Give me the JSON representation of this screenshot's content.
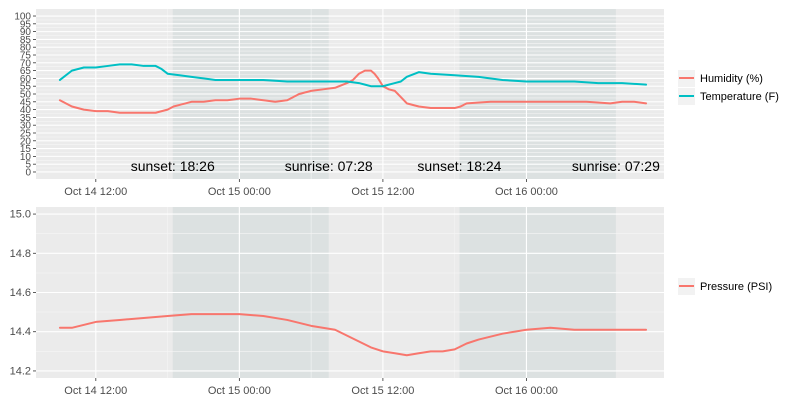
{
  "chart_data": [
    {
      "type": "line",
      "title": "",
      "xlabel": "",
      "ylabel": "",
      "ylim": [
        0,
        100
      ],
      "y_ticks": [
        "0",
        "5",
        "10",
        "15",
        "20",
        "25",
        "30",
        "35",
        "40",
        "45",
        "50",
        "55",
        "60",
        "65",
        "70",
        "75",
        "80",
        "85",
        "90",
        "95",
        "100"
      ],
      "x_ticks": [
        "Oct 14 12:00",
        "Oct 15 00:00",
        "Oct 15 12:00",
        "Oct 16 00:00"
      ],
      "x_tick_hours": [
        12,
        24,
        36,
        48
      ],
      "xlim_hours": [
        7.0,
        59.5
      ],
      "grid": true,
      "legend_position": "right",
      "night_bands_hours": [
        [
          18.43,
          31.47
        ],
        [
          42.4,
          55.48
        ]
      ],
      "annotations": [
        {
          "text": "sunset: 18:26",
          "x": 18.43
        },
        {
          "text": "sunrise: 07:28",
          "x": 31.47
        },
        {
          "text": "sunset: 18:24",
          "x": 42.4
        },
        {
          "text": "sunrise: 07:29",
          "x": 55.48
        }
      ],
      "series": [
        {
          "name": "Humidity (%)",
          "color": "#F8766D",
          "x": [
            9.0,
            10.0,
            11.0,
            12.0,
            13.0,
            14.0,
            15.0,
            16.0,
            17.0,
            18.0,
            18.5,
            19.0,
            20.0,
            21.0,
            22.0,
            23.0,
            24.0,
            25.0,
            26.0,
            27.0,
            28.0,
            29.0,
            30.0,
            31.0,
            32.0,
            33.0,
            33.5,
            34.0,
            34.5,
            35.0,
            35.3,
            35.6,
            36.0,
            36.5,
            37.0,
            37.5,
            38.0,
            39.0,
            40.0,
            41.0,
            42.0,
            42.5,
            43.0,
            45.0,
            47.0,
            49.0,
            50.0,
            51.0,
            53.0,
            55.0,
            56.0,
            57.0,
            58.0
          ],
          "values": [
            46,
            42,
            40,
            39,
            39,
            38,
            38,
            38,
            38,
            40,
            42,
            43,
            45,
            45,
            46,
            46,
            47,
            47,
            46,
            45,
            46,
            50,
            52,
            53,
            54,
            57,
            59,
            63,
            65,
            65,
            63,
            60,
            55,
            53,
            52,
            48,
            44,
            42,
            41,
            41,
            41,
            42,
            44,
            45,
            45,
            45,
            45,
            45,
            45,
            44,
            45,
            45,
            44
          ]
        },
        {
          "name": "Temperature (F)",
          "color": "#00BFC4",
          "x": [
            9.0,
            10.0,
            11.0,
            12.0,
            13.0,
            14.0,
            15.0,
            16.0,
            17.0,
            17.5,
            18.0,
            19.0,
            20.0,
            21.0,
            22.0,
            24.0,
            26.0,
            28.0,
            30.0,
            32.0,
            33.0,
            34.0,
            34.5,
            35.0,
            35.5,
            36.0,
            36.5,
            37.0,
            37.5,
            38.0,
            39.0,
            40.0,
            42.0,
            44.0,
            46.0,
            48.0,
            50.0,
            52.0,
            54.0,
            56.0,
            58.0
          ],
          "values": [
            59,
            65,
            67,
            67,
            68,
            69,
            69,
            68,
            68,
            66,
            63,
            62,
            61,
            60,
            59,
            59,
            59,
            58,
            58,
            58,
            58,
            57,
            56,
            55,
            55,
            55,
            56,
            57,
            58,
            61,
            64,
            63,
            62,
            61,
            59,
            58,
            58,
            58,
            57,
            57,
            56
          ]
        }
      ]
    },
    {
      "type": "line",
      "title": "",
      "xlabel": "",
      "ylabel": "",
      "ylim": [
        14.2,
        15.0
      ],
      "y_ticks": [
        "14.2",
        "14.4",
        "14.6",
        "14.8",
        "15.0"
      ],
      "y_tick_values": [
        14.2,
        14.4,
        14.6,
        14.8,
        15.0
      ],
      "x_ticks": [
        "Oct 14 12:00",
        "Oct 15 00:00",
        "Oct 15 12:00",
        "Oct 16 00:00"
      ],
      "x_tick_hours": [
        12,
        24,
        36,
        48
      ],
      "xlim_hours": [
        7.0,
        59.5
      ],
      "grid": true,
      "legend_position": "right",
      "night_bands_hours": [
        [
          18.43,
          31.47
        ],
        [
          42.4,
          55.48
        ]
      ],
      "series": [
        {
          "name": "Pressure (PSI)",
          "color": "#F8766D",
          "x": [
            9.0,
            10.0,
            12.0,
            14.0,
            16.0,
            18.0,
            20.0,
            22.0,
            24.0,
            26.0,
            28.0,
            30.0,
            32.0,
            33.0,
            34.0,
            35.0,
            36.0,
            37.0,
            38.0,
            39.0,
            40.0,
            41.0,
            42.0,
            43.0,
            44.0,
            46.0,
            48.0,
            50.0,
            52.0,
            54.0,
            56.0,
            58.0
          ],
          "values": [
            14.42,
            14.42,
            14.45,
            14.46,
            14.47,
            14.48,
            14.49,
            14.49,
            14.49,
            14.48,
            14.46,
            14.43,
            14.41,
            14.38,
            14.35,
            14.32,
            14.3,
            14.29,
            14.28,
            14.29,
            14.3,
            14.3,
            14.31,
            14.34,
            14.36,
            14.39,
            14.41,
            14.42,
            14.41,
            14.41,
            14.41,
            14.41
          ]
        }
      ]
    }
  ]
}
